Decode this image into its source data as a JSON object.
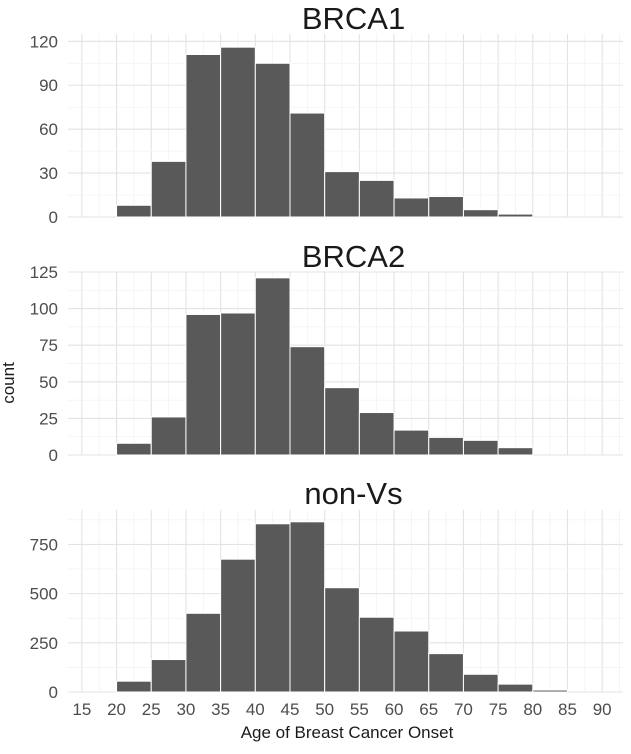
{
  "chart_data": {
    "type": "bar",
    "subtype": "faceted-histogram",
    "xlabel": "Age of Breast Cancer Onset",
    "ylabel": "count",
    "binwidth": 5,
    "xlim": [
      13,
      93
    ],
    "x_ticks": [
      15,
      20,
      25,
      30,
      35,
      40,
      45,
      50,
      55,
      60,
      65,
      70,
      75,
      80,
      85,
      90
    ],
    "grid": true,
    "bar_color": "#595959",
    "facets": [
      {
        "title": "BRCA1",
        "ylim": [
          0,
          125
        ],
        "y_ticks": [
          0,
          30,
          60,
          90,
          120
        ],
        "bin_starts": [
          20,
          25,
          30,
          35,
          40,
          45,
          50,
          55,
          60,
          65,
          70,
          75
        ],
        "values": [
          8,
          38,
          111,
          116,
          105,
          71,
          31,
          25,
          13,
          14,
          5,
          2
        ]
      },
      {
        "title": "BRCA2",
        "ylim": [
          0,
          125
        ],
        "y_ticks": [
          0,
          25,
          50,
          75,
          100,
          125
        ],
        "bin_starts": [
          20,
          25,
          30,
          35,
          40,
          45,
          50,
          55,
          60,
          65,
          70,
          75
        ],
        "values": [
          8,
          26,
          96,
          97,
          121,
          74,
          46,
          29,
          17,
          12,
          10,
          5
        ]
      },
      {
        "title": "non-Vs",
        "ylim": [
          0,
          925
        ],
        "y_ticks": [
          0,
          250,
          500,
          750
        ],
        "bin_starts": [
          20,
          25,
          30,
          35,
          40,
          45,
          50,
          55,
          60,
          65,
          70,
          75,
          80
        ],
        "values": [
          55,
          165,
          400,
          675,
          855,
          865,
          530,
          380,
          310,
          195,
          90,
          40,
          10
        ]
      }
    ]
  }
}
